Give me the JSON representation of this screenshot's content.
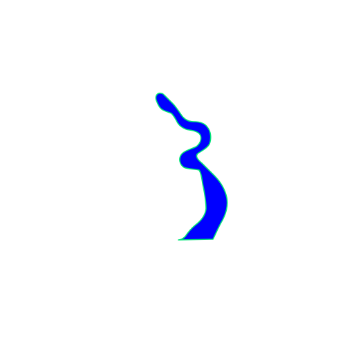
{
  "shape": {
    "fill_color": "#0000ff",
    "outline_color": "#00e676",
    "background_color": "#ffffff"
  }
}
